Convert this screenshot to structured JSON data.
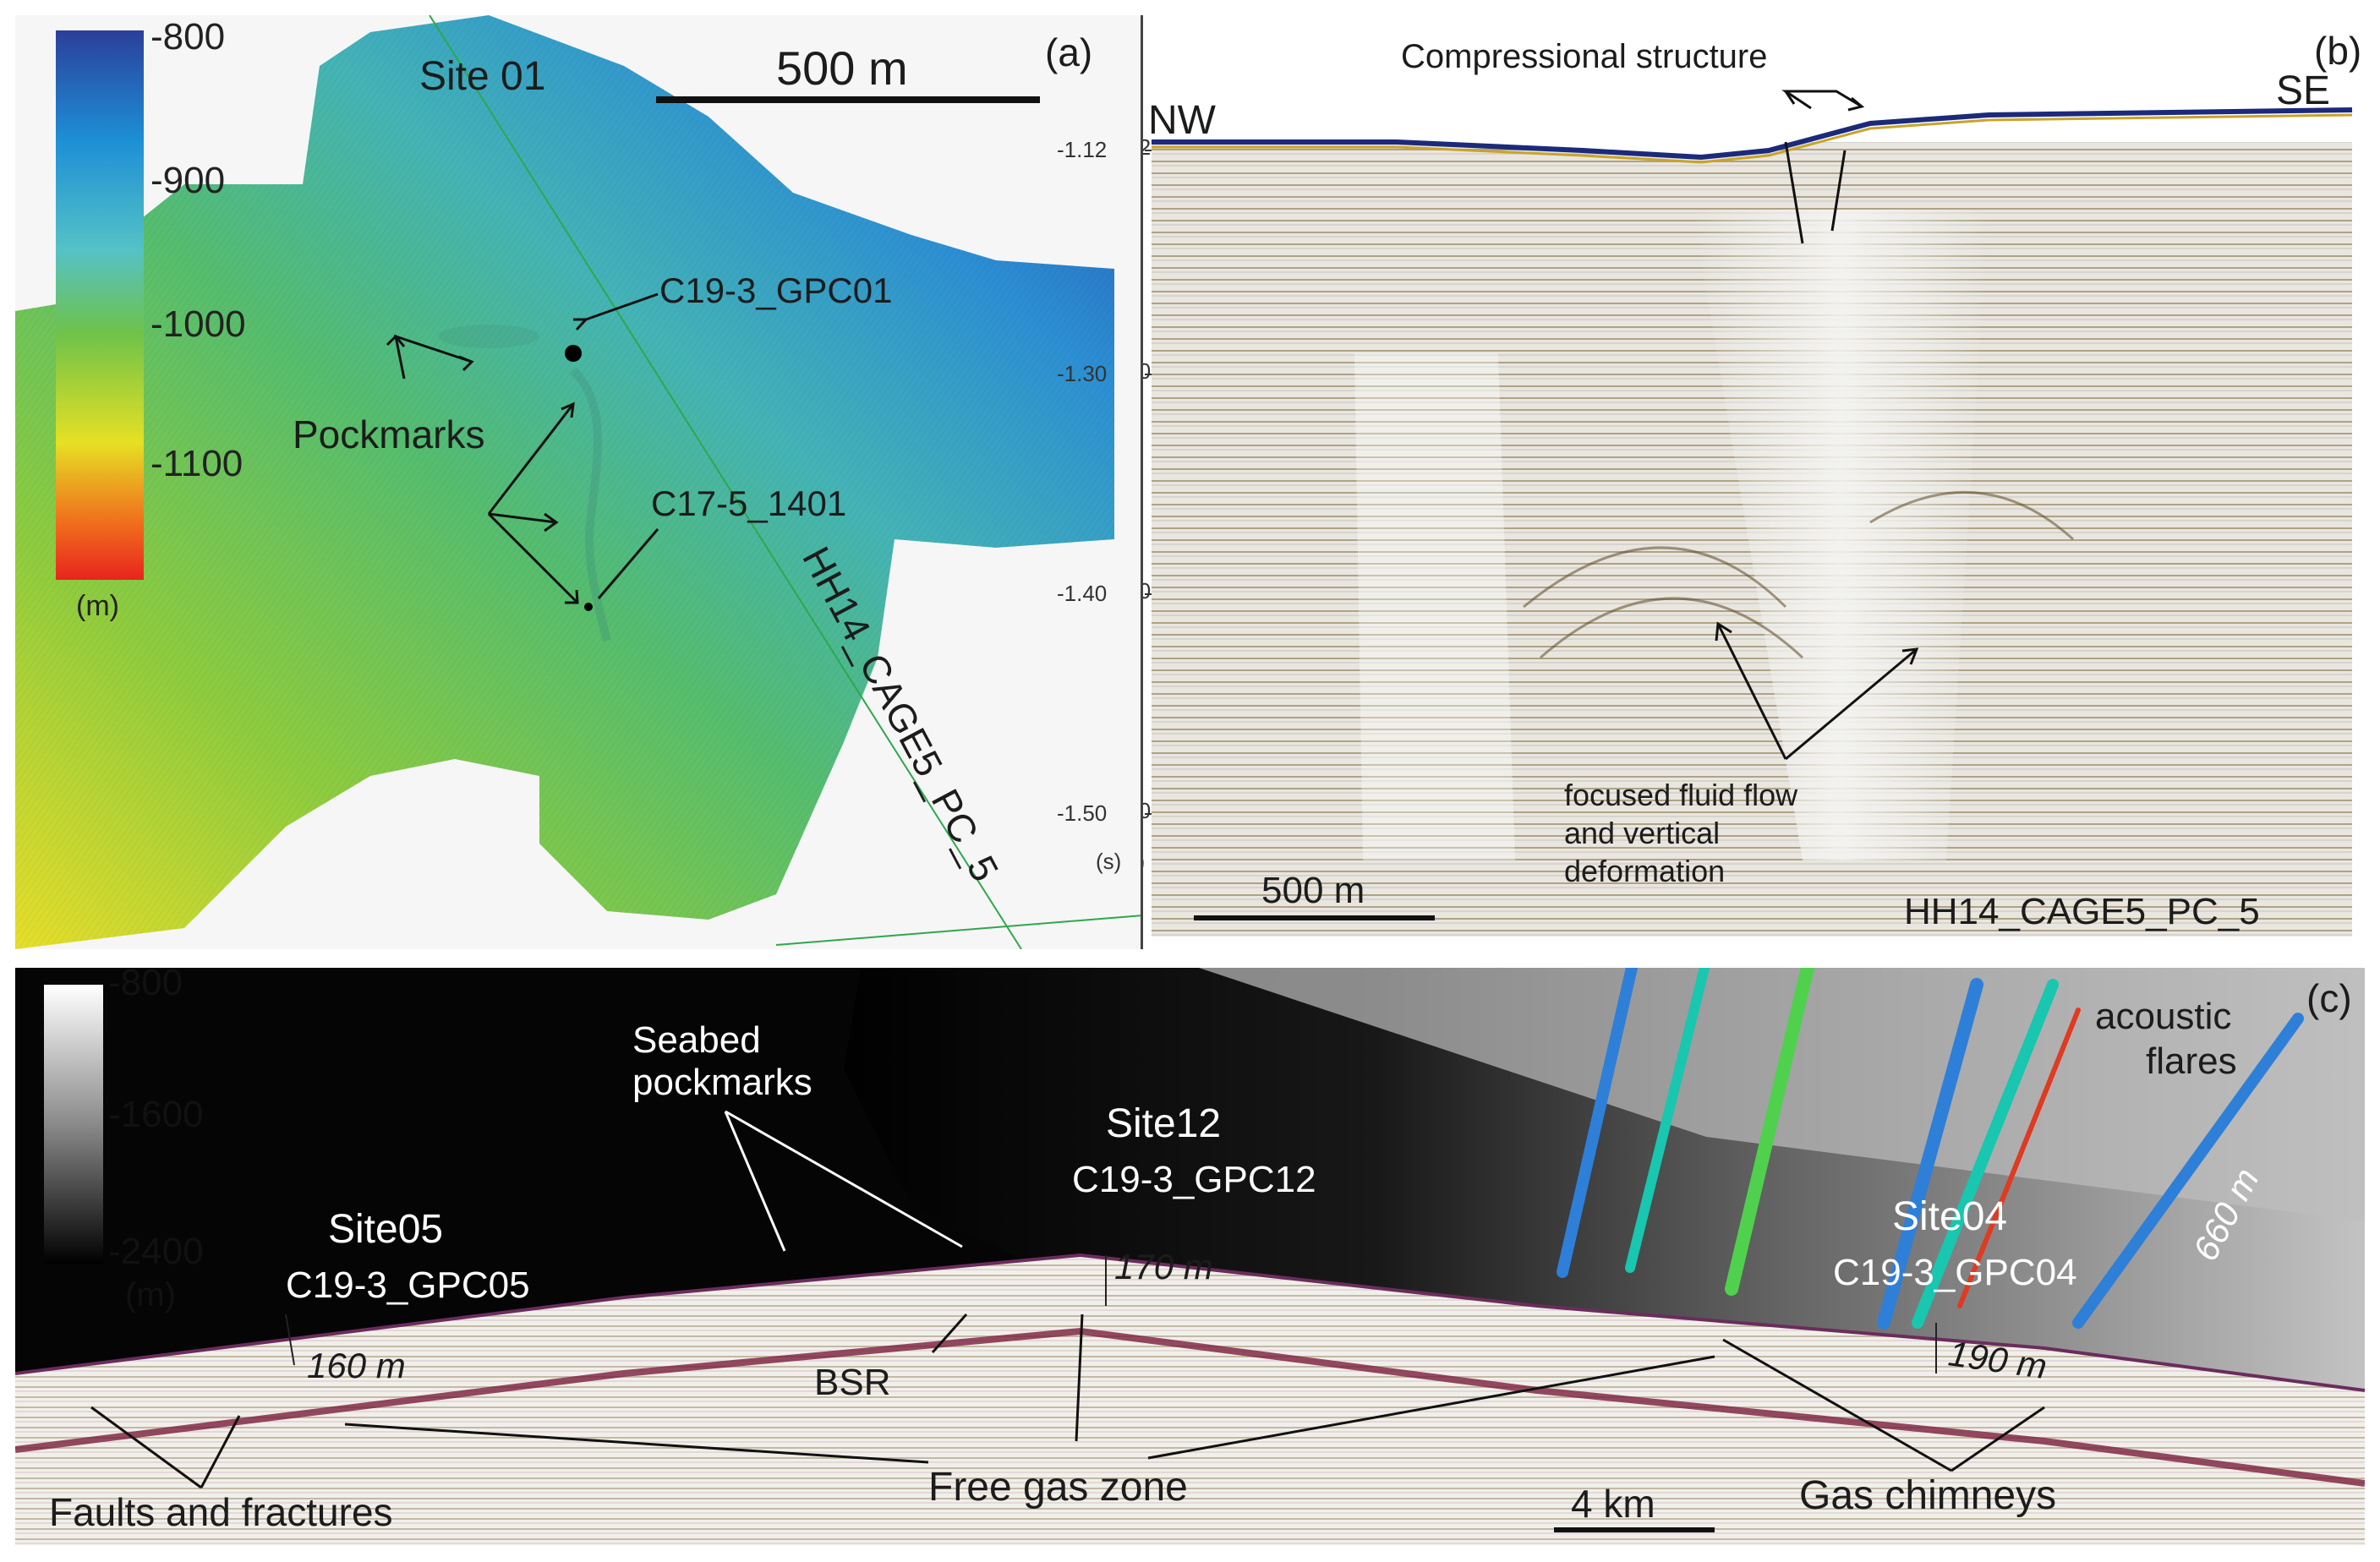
{
  "panel_a": {
    "letter": "(a)",
    "site": "Site 01",
    "scale_bar": "500 m",
    "core_1": "C19-3_GPC01",
    "core_2": "C17-5_1401",
    "pockmarks": "Pockmarks",
    "profile_line": "HH14_CAGE5_PC_5",
    "colorbar": {
      "ticks": [
        "-800",
        "-900",
        "-1000",
        "-1100"
      ],
      "unit": "(m)"
    }
  },
  "panel_b": {
    "letter": "(b)",
    "title": "Compressional structure",
    "nw": "NW",
    "se": "SE",
    "yticks": [
      "-1.12",
      "-1.30",
      "-1.40",
      "-1.50"
    ],
    "yunit": "(s)",
    "scale_bar": "500 m",
    "flow_label": [
      "focused fluid flow",
      "and vertical",
      "deformation"
    ],
    "profile": "HH14_CAGE5_PC_5"
  },
  "panel_c": {
    "letter": "(c)",
    "colorbar": {
      "ticks": [
        "-800",
        "-1600",
        "-2400"
      ],
      "unit": "(m)"
    },
    "seabed_pockmarks": [
      "Seabed",
      "pockmarks"
    ],
    "site05": "Site05",
    "core05": "C19-3_GPC05",
    "site12": "Site12",
    "core12": "C19-3_GPC12",
    "site04": "Site04",
    "core04": "C19-3_GPC04",
    "acoustic_flares": [
      "acoustic",
      "flares"
    ],
    "d160": "160 m",
    "d170": "170 m",
    "d190": "190 m",
    "d660": "660 m",
    "bsr": "BSR",
    "faults": "Faults and fractures",
    "free_gas": "Free gas zone",
    "gas_chimneys": "Gas chimneys",
    "scale_bar": "4 km"
  },
  "colors": {
    "colorbar_a": [
      "#2b3f9a",
      "#1d8fd6",
      "#55c2c6",
      "#6ec24a",
      "#e6e024",
      "#f06b1d",
      "#e8241d"
    ],
    "flare_colors": [
      "#2e7fd8",
      "#19c6b0",
      "#4fd14e",
      "#e03a22"
    ]
  }
}
